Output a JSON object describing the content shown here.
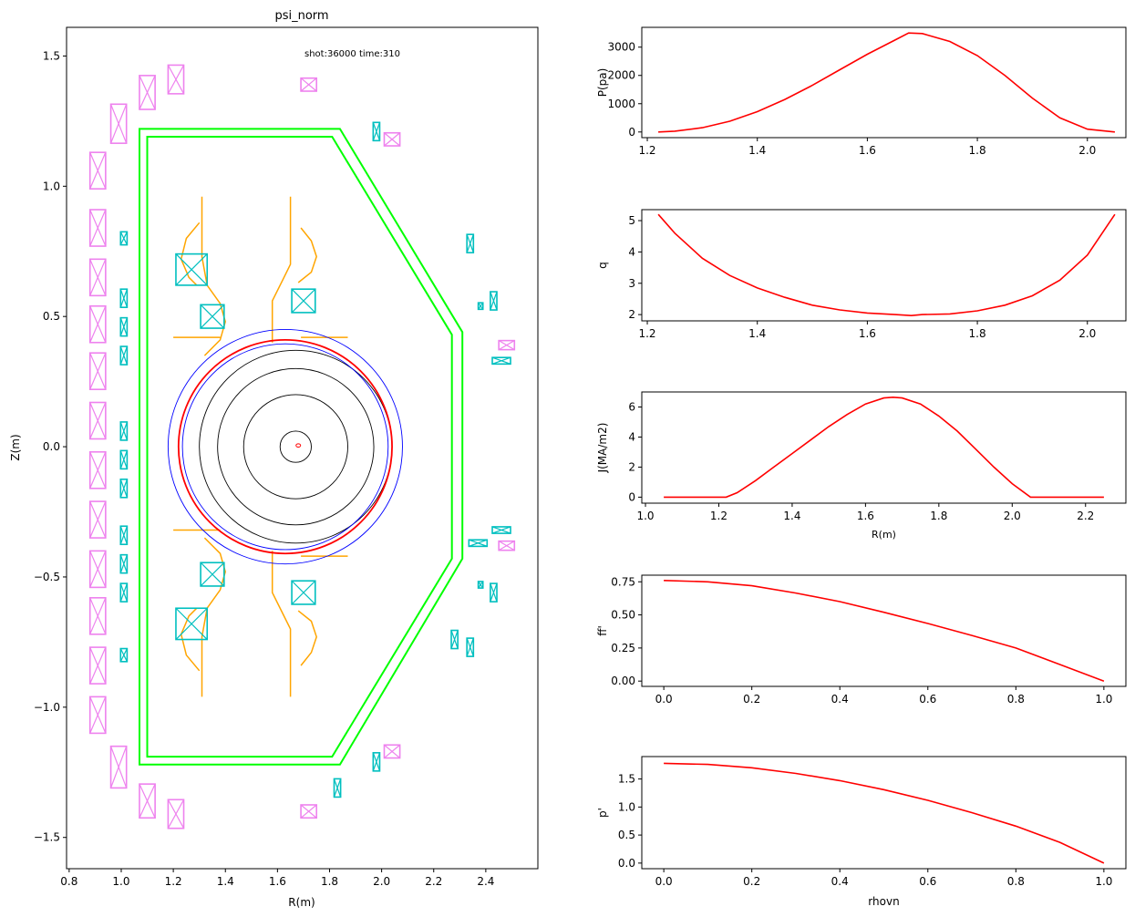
{
  "figure": {
    "left_panel": {
      "title": "psi_norm",
      "annotation": "shot:36000  time:310",
      "xlabel": "R(m)",
      "ylabel": "Z(m)",
      "xticks": [
        "0.8",
        "1.0",
        "1.2",
        "1.4",
        "1.6",
        "1.8",
        "2.0",
        "2.2",
        "2.4"
      ],
      "yticks": [
        "1.5",
        "1.0",
        "0.5",
        "0.0",
        "−0.5",
        "−1.0",
        "−1.5"
      ]
    }
  },
  "chart_data": [
    {
      "type": "equilibrium",
      "title": "psi_norm",
      "annotation": "shot:36000  time:310",
      "xlabel": "R(m)",
      "ylabel": "Z(m)",
      "xlim": [
        0.79,
        2.6
      ],
      "ylim": [
        -1.62,
        1.61
      ],
      "axis_center": [
        1.67,
        0.0
      ],
      "flux_surface_radii_m": [
        0.06,
        0.2,
        0.3,
        0.37
      ],
      "lcfs": {
        "center": [
          1.63,
          0.0
        ],
        "a": 0.41,
        "b": 0.41,
        "color": "#ff0000"
      },
      "outer_circle": {
        "center": [
          1.63,
          0.0
        ],
        "a": 0.45,
        "b": 0.45,
        "color": "#0000ff"
      },
      "inner_circle": {
        "center": [
          1.63,
          0.0
        ],
        "a": 0.395,
        "b": 0.395,
        "color": "#0000ff"
      },
      "axis_marker": {
        "center": [
          1.68,
          0.005
        ],
        "color": "#ff0000"
      },
      "vessel": {
        "color": "#00ff00",
        "outer": [
          [
            1.07,
            1.22
          ],
          [
            1.84,
            1.22
          ],
          [
            2.31,
            0.44
          ],
          [
            2.31,
            -0.43
          ],
          [
            1.84,
            -1.22
          ],
          [
            1.07,
            -1.22
          ]
        ],
        "inner": [
          [
            1.1,
            1.19
          ],
          [
            1.81,
            1.19
          ],
          [
            2.27,
            0.43
          ],
          [
            2.27,
            -0.43
          ],
          [
            1.81,
            -1.19
          ],
          [
            1.1,
            -1.19
          ]
        ]
      },
      "divertor_color": "#ffa500",
      "divertor_lines": [
        [
          [
            1.31,
            0.96
          ],
          [
            1.31,
            0.73
          ],
          [
            1.33,
            0.62
          ],
          [
            1.38,
            0.55
          ],
          [
            1.4,
            0.48
          ],
          [
            1.38,
            0.41
          ],
          [
            1.32,
            0.35
          ]
        ],
        [
          [
            1.65,
            0.96
          ],
          [
            1.65,
            0.7
          ],
          [
            1.62,
            0.64
          ],
          [
            1.58,
            0.56
          ],
          [
            1.58,
            0.4
          ]
        ],
        [
          [
            1.3,
            0.86
          ],
          [
            1.25,
            0.8
          ],
          [
            1.23,
            0.72
          ],
          [
            1.26,
            0.65
          ],
          [
            1.29,
            0.62
          ]
        ],
        [
          [
            1.69,
            0.84
          ],
          [
            1.73,
            0.79
          ],
          [
            1.75,
            0.73
          ],
          [
            1.73,
            0.67
          ],
          [
            1.68,
            0.63
          ]
        ],
        [
          [
            1.2,
            0.42
          ],
          [
            1.38,
            0.42
          ]
        ],
        [
          [
            1.69,
            0.42
          ],
          [
            1.87,
            0.42
          ]
        ],
        [
          [
            1.31,
            -0.96
          ],
          [
            1.31,
            -0.73
          ],
          [
            1.33,
            -0.62
          ],
          [
            1.38,
            -0.55
          ],
          [
            1.4,
            -0.48
          ],
          [
            1.38,
            -0.41
          ],
          [
            1.32,
            -0.35
          ]
        ],
        [
          [
            1.65,
            -0.96
          ],
          [
            1.65,
            -0.7
          ],
          [
            1.62,
            -0.64
          ],
          [
            1.58,
            -0.56
          ],
          [
            1.58,
            -0.4
          ]
        ],
        [
          [
            1.3,
            -0.86
          ],
          [
            1.25,
            -0.8
          ],
          [
            1.23,
            -0.72
          ],
          [
            1.26,
            -0.65
          ],
          [
            1.29,
            -0.62
          ]
        ],
        [
          [
            1.69,
            -0.84
          ],
          [
            1.73,
            -0.79
          ],
          [
            1.75,
            -0.73
          ],
          [
            1.73,
            -0.67
          ],
          [
            1.68,
            -0.63
          ]
        ],
        [
          [
            1.2,
            -0.32
          ],
          [
            1.38,
            -0.32
          ]
        ],
        [
          [
            1.69,
            -0.42
          ],
          [
            1.87,
            -0.42
          ]
        ]
      ],
      "pf_coils_color": "#ee82ee",
      "pf_coils": [
        [
          0.91,
          1.06,
          0.06,
          0.14
        ],
        [
          0.91,
          0.84,
          0.06,
          0.14
        ],
        [
          0.91,
          0.65,
          0.06,
          0.14
        ],
        [
          0.91,
          0.47,
          0.06,
          0.14
        ],
        [
          0.91,
          0.29,
          0.06,
          0.14
        ],
        [
          0.91,
          0.1,
          0.06,
          0.14
        ],
        [
          0.91,
          -0.09,
          0.06,
          0.14
        ],
        [
          0.91,
          -0.28,
          0.06,
          0.14
        ],
        [
          0.91,
          -0.47,
          0.06,
          0.14
        ],
        [
          0.91,
          -0.65,
          0.06,
          0.14
        ],
        [
          0.91,
          -0.84,
          0.06,
          0.14
        ],
        [
          0.91,
          -1.03,
          0.06,
          0.14
        ],
        [
          0.99,
          1.24,
          0.06,
          0.15
        ],
        [
          0.99,
          -1.23,
          0.06,
          0.16
        ],
        [
          1.1,
          1.36,
          0.06,
          0.13
        ],
        [
          1.1,
          -1.36,
          0.06,
          0.13
        ],
        [
          1.21,
          1.41,
          0.06,
          0.11
        ],
        [
          1.21,
          -1.41,
          0.06,
          0.11
        ],
        [
          1.72,
          1.39,
          0.06,
          0.05
        ],
        [
          1.72,
          -1.4,
          0.06,
          0.05
        ],
        [
          2.04,
          1.18,
          0.06,
          0.05
        ],
        [
          2.04,
          -1.17,
          0.06,
          0.05
        ],
        [
          2.48,
          0.39,
          0.06,
          0.035
        ],
        [
          2.48,
          -0.38,
          0.06,
          0.035
        ]
      ],
      "control_coils_color": "#00bfbf",
      "control_coils": [
        [
          1.27,
          0.68,
          0.12,
          0.12
        ],
        [
          1.27,
          -0.68,
          0.12,
          0.12
        ],
        [
          1.35,
          0.5,
          0.09,
          0.09
        ],
        [
          1.35,
          -0.49,
          0.09,
          0.09
        ],
        [
          1.7,
          0.56,
          0.09,
          0.09
        ],
        [
          1.7,
          -0.56,
          0.09,
          0.09
        ],
        [
          1.01,
          0.8,
          0.025,
          0.05
        ],
        [
          1.01,
          0.57,
          0.025,
          0.07
        ],
        [
          1.01,
          0.46,
          0.025,
          0.07
        ],
        [
          1.01,
          0.35,
          0.025,
          0.07
        ],
        [
          1.01,
          0.06,
          0.025,
          0.07
        ],
        [
          1.01,
          -0.05,
          0.025,
          0.07
        ],
        [
          1.01,
          -0.16,
          0.025,
          0.07
        ],
        [
          1.01,
          -0.34,
          0.025,
          0.07
        ],
        [
          1.01,
          -0.45,
          0.025,
          0.07
        ],
        [
          1.01,
          -0.56,
          0.025,
          0.07
        ],
        [
          1.01,
          -0.8,
          0.025,
          0.05
        ],
        [
          1.98,
          1.21,
          0.025,
          0.07
        ],
        [
          1.98,
          -1.21,
          0.025,
          0.07
        ],
        [
          1.83,
          -1.31,
          0.025,
          0.07
        ],
        [
          2.34,
          0.78,
          0.025,
          0.07
        ],
        [
          2.34,
          -0.77,
          0.025,
          0.07
        ],
        [
          2.28,
          -0.74,
          0.025,
          0.07
        ],
        [
          2.43,
          0.56,
          0.025,
          0.07
        ],
        [
          2.43,
          -0.56,
          0.025,
          0.07
        ],
        [
          2.38,
          0.54,
          0.018,
          0.025
        ],
        [
          2.38,
          -0.53,
          0.018,
          0.025
        ],
        [
          2.46,
          0.33,
          0.07,
          0.025
        ],
        [
          2.46,
          -0.32,
          0.07,
          0.025
        ],
        [
          2.37,
          -0.37,
          0.07,
          0.025
        ]
      ]
    },
    {
      "type": "line",
      "ylabel": "P(pa)",
      "xlim": [
        1.19,
        2.07
      ],
      "ylim": [
        -200,
        3700
      ],
      "xticks": [
        "1.2",
        "1.4",
        "1.6",
        "1.8",
        "2.0"
      ],
      "yticks": [
        "0",
        "1000",
        "2000",
        "3000"
      ],
      "x": [
        1.22,
        1.25,
        1.3,
        1.35,
        1.4,
        1.45,
        1.5,
        1.55,
        1.6,
        1.65,
        1.675,
        1.7,
        1.75,
        1.8,
        1.85,
        1.9,
        1.95,
        2.0,
        2.05
      ],
      "y": [
        0,
        30,
        150,
        380,
        720,
        1150,
        1650,
        2200,
        2750,
        3250,
        3500,
        3480,
        3200,
        2700,
        2000,
        1200,
        500,
        100,
        0
      ],
      "color": "#ff0000"
    },
    {
      "type": "line",
      "ylabel": "q",
      "xlim": [
        1.19,
        2.07
      ],
      "ylim": [
        1.8,
        5.35
      ],
      "xticks": [
        "1.2",
        "1.4",
        "1.6",
        "1.8",
        "2.0"
      ],
      "yticks": [
        "2",
        "3",
        "4",
        "5"
      ],
      "x": [
        1.22,
        1.25,
        1.3,
        1.35,
        1.4,
        1.45,
        1.5,
        1.55,
        1.6,
        1.65,
        1.68,
        1.7,
        1.75,
        1.8,
        1.85,
        1.9,
        1.95,
        2.0,
        2.05
      ],
      "y": [
        5.2,
        4.6,
        3.8,
        3.25,
        2.85,
        2.55,
        2.3,
        2.15,
        2.05,
        2.0,
        1.97,
        2.0,
        2.02,
        2.12,
        2.3,
        2.6,
        3.1,
        3.9,
        5.2
      ],
      "color": "#ff0000"
    },
    {
      "type": "line",
      "ylabel": "J(MA/m2)",
      "xlabel": "R(m)",
      "xlim": [
        0.99,
        2.31
      ],
      "ylim": [
        -0.4,
        7.0
      ],
      "xticks": [
        "1.0",
        "1.2",
        "1.4",
        "1.6",
        "1.8",
        "2.0",
        "2.2"
      ],
      "yticks": [
        "0",
        "2",
        "4",
        "6"
      ],
      "x": [
        1.05,
        1.15,
        1.22,
        1.25,
        1.3,
        1.35,
        1.4,
        1.45,
        1.5,
        1.55,
        1.6,
        1.65,
        1.675,
        1.7,
        1.75,
        1.8,
        1.85,
        1.9,
        1.95,
        2.0,
        2.05,
        2.15,
        2.25
      ],
      "y": [
        0,
        0,
        0,
        0.3,
        1.1,
        2.0,
        2.9,
        3.8,
        4.7,
        5.5,
        6.2,
        6.6,
        6.65,
        6.6,
        6.2,
        5.4,
        4.4,
        3.2,
        2.0,
        0.9,
        0,
        0,
        0
      ],
      "color": "#ff0000"
    },
    {
      "type": "line",
      "ylabel": "ff'",
      "xlim": [
        -0.05,
        1.05
      ],
      "ylim": [
        -0.04,
        0.8
      ],
      "xticks": [
        "0.0",
        "0.2",
        "0.4",
        "0.6",
        "0.8",
        "1.0"
      ],
      "yticks": [
        "0.00",
        "0.25",
        "0.50",
        "0.75"
      ],
      "x": [
        0,
        0.1,
        0.2,
        0.3,
        0.4,
        0.5,
        0.6,
        0.7,
        0.8,
        0.9,
        1.0
      ],
      "y": [
        0.76,
        0.75,
        0.72,
        0.665,
        0.6,
        0.52,
        0.435,
        0.345,
        0.25,
        0.125,
        0.0
      ],
      "color": "#ff0000"
    },
    {
      "type": "line",
      "ylabel": "p'",
      "xlabel": "rhovn",
      "xlim": [
        -0.05,
        1.05
      ],
      "ylim": [
        -0.1,
        1.9
      ],
      "xticks": [
        "0.0",
        "0.2",
        "0.4",
        "0.6",
        "0.8",
        "1.0"
      ],
      "yticks": [
        "0.0",
        "0.5",
        "1.0",
        "1.5"
      ],
      "x": [
        0,
        0.1,
        0.2,
        0.3,
        0.4,
        0.5,
        0.6,
        0.7,
        0.8,
        0.9,
        1.0
      ],
      "y": [
        1.78,
        1.76,
        1.7,
        1.6,
        1.47,
        1.31,
        1.12,
        0.9,
        0.66,
        0.37,
        0.0
      ],
      "color": "#ff0000"
    }
  ]
}
